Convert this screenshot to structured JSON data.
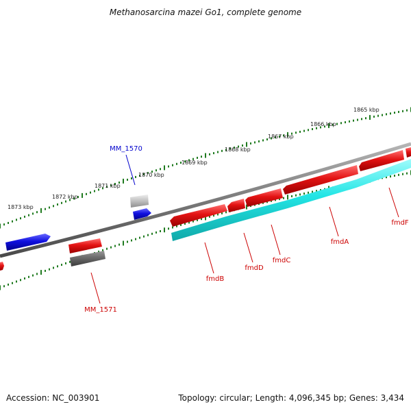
{
  "title": "Methanosarcina mazei Go1, complete genome",
  "footer": {
    "accession": "Accession: NC_003901",
    "summary": "Topology: circular; Length: 4,096,345 bp; Genes: 3,434"
  },
  "scale_labels": [
    "1873 kbp",
    "1872 kbp",
    "1871 kbp",
    "1870 kbp",
    "1869 kbp",
    "1868 kbp",
    "1867 kbp",
    "1866 kbp",
    "1865 kbp"
  ],
  "gene_labels": {
    "mm1570": "MM_1570",
    "mm1571": "MM_1571",
    "fmdB": "fmdB",
    "fmdD": "fmdD",
    "fmdC": "fmdC",
    "fmdA": "fmdA",
    "fmdF": "fmdF"
  },
  "colors": {
    "backbone": "#7a7a7a",
    "tick": "#1f7a1f",
    "gene_red": "#e31313",
    "gene_cyan": "#22e5e5",
    "gene_blue": "#1010e0",
    "gene_grey": "#6a6a6a",
    "gene_lightgrey": "#c4c4c4",
    "label_red": "#cc0000",
    "label_blue": "#0000cc"
  }
}
